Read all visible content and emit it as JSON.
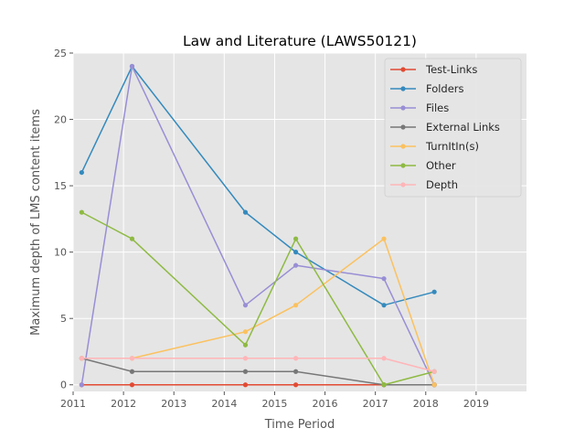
{
  "chart_data": {
    "type": "line",
    "title": "Law and Literature (LAWS50121)",
    "xlabel": "Time Period",
    "ylabel": "Maximum depth of LMS content items",
    "xlim": [
      2011.0,
      2020.0
    ],
    "ylim": [
      -0.5,
      25.0
    ],
    "xticks": [
      2011,
      2012,
      2013,
      2014,
      2015,
      2016,
      2017,
      2018,
      2019
    ],
    "yticks": [
      0,
      5,
      10,
      15,
      20,
      25
    ],
    "grid": true,
    "legend_position": "top-right",
    "series": [
      {
        "name": "Test-Links",
        "color": "#E24A33",
        "x": [
          2011.17,
          2012.17,
          2014.42,
          2015.42,
          2017.17,
          2018.17
        ],
        "y": [
          0,
          0,
          0,
          0,
          0,
          0
        ]
      },
      {
        "name": "Folders",
        "color": "#348ABD",
        "x": [
          2011.17,
          2012.17,
          2014.42,
          2015.42,
          2017.17,
          2018.17
        ],
        "y": [
          16,
          24,
          13,
          10,
          6,
          7
        ]
      },
      {
        "name": "Files",
        "color": "#988ED5",
        "x": [
          2011.17,
          2012.17,
          2014.42,
          2015.42,
          2017.17,
          2018.17
        ],
        "y": [
          0,
          24,
          6,
          9,
          8,
          0
        ]
      },
      {
        "name": "External Links",
        "color": "#777777",
        "x": [
          2011.17,
          2012.17,
          2014.42,
          2015.42,
          2017.17,
          2018.17
        ],
        "y": [
          2,
          1,
          1,
          1,
          0,
          0
        ]
      },
      {
        "name": "TurnItIn(s)",
        "color": "#FBC15E",
        "x": [
          2011.17,
          2012.17,
          2014.42,
          2015.42,
          2017.17,
          2018.17
        ],
        "y": [
          2,
          2,
          4,
          6,
          11,
          0
        ]
      },
      {
        "name": "Other",
        "color": "#8EBA42",
        "x": [
          2011.17,
          2012.17,
          2014.42,
          2015.42,
          2017.17,
          2018.17
        ],
        "y": [
          13,
          11,
          3,
          11,
          0,
          1
        ]
      },
      {
        "name": "Depth",
        "color": "#FFB5B8",
        "x": [
          2011.17,
          2012.17,
          2014.42,
          2015.42,
          2017.17,
          2018.17
        ],
        "y": [
          2,
          2,
          2,
          2,
          2,
          1
        ]
      }
    ]
  }
}
